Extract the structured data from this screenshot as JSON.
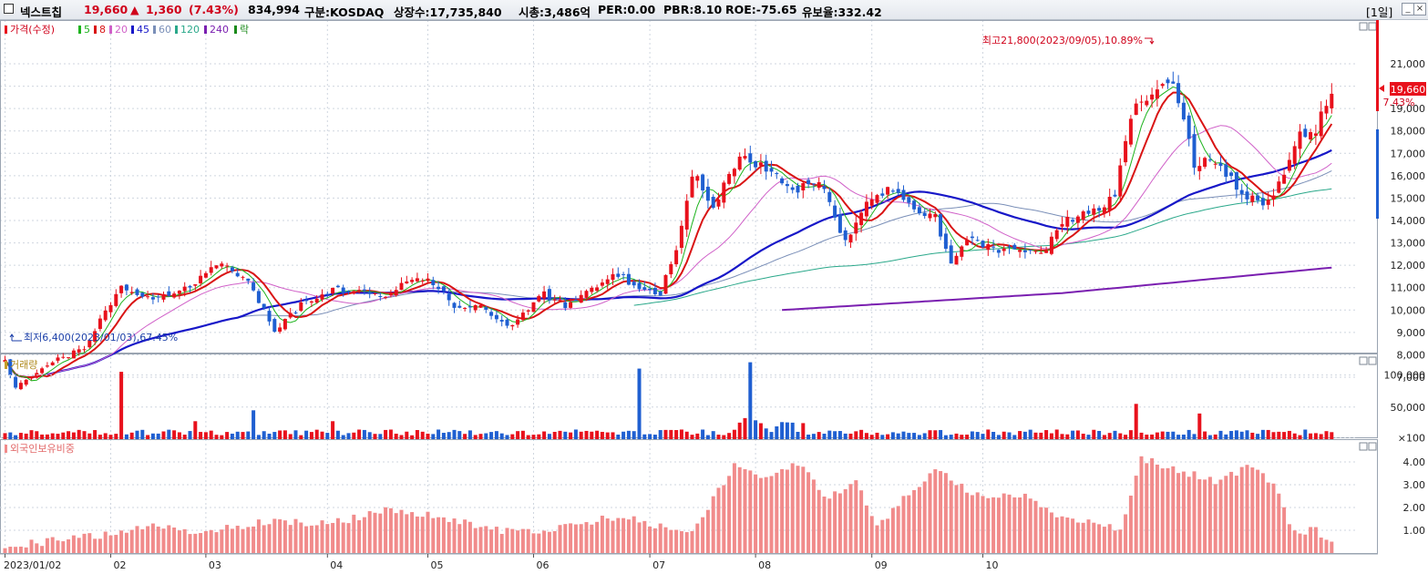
{
  "header": {
    "name": "넥스트칩",
    "price": "19,660",
    "change_arrow": "▲",
    "change": "1,360",
    "change_pct": "(7.43%)",
    "volume": "834,994",
    "market": "구분:KOSDAQ",
    "listed": "상장수:17,735,840",
    "mcap": "시총:3,486억",
    "per": "PER:0.00",
    "pbr": "PBR:8.10",
    "roe": "ROE:-75.65",
    "reserve": "유보율:332.42",
    "period": "[1일]",
    "min_glyph": "_",
    "max_glyph": "□",
    "close_glyph": "×"
  },
  "colors": {
    "up": "#e8111c",
    "down": "#1f5fd1",
    "ma5": "#1db31d",
    "ma8": "#d91414",
    "ma20": "#d060c8",
    "ma45": "#1717c8",
    "ma60": "#7a8fb8",
    "ma120": "#2aa88a",
    "ma240": "#7a1fb0",
    "foreign": "#f18b8b",
    "grid": "#cfd6df"
  },
  "chart_data": [
    {
      "type": "candlestick",
      "title": "가격(수정)",
      "legend": [
        "5",
        "8",
        "20",
        "45",
        "60",
        "120",
        "240",
        "락"
      ],
      "ylim": [
        6000,
        22500
      ],
      "yticks": [
        "7,000",
        "8,000",
        "9,000",
        "10,000",
        "11,000",
        "12,000",
        "13,000",
        "14,000",
        "15,000",
        "16,000",
        "17,000",
        "18,000",
        "19,000",
        "20,000",
        "21,000"
      ],
      "high_annotation": "최고21,800(2023/09/05),10.89%",
      "low_annotation": "최저6,400(2023/01/03),67.45%",
      "current_label": "19,660",
      "current_pct": "7.43%",
      "xlabels": [
        "2023/01/02",
        "02",
        "03",
        "04",
        "05",
        "06",
        "07",
        "08",
        "09",
        "10"
      ],
      "anchors": [
        [
          0,
          7700
        ],
        [
          2,
          6500
        ],
        [
          8,
          7600
        ],
        [
          15,
          8300
        ],
        [
          19,
          9900
        ],
        [
          22,
          11000
        ],
        [
          27,
          10500
        ],
        [
          33,
          10800
        ],
        [
          36,
          11300
        ],
        [
          41,
          12200
        ],
        [
          46,
          11200
        ],
        [
          51,
          9100
        ],
        [
          56,
          10200
        ],
        [
          61,
          10800
        ],
        [
          67,
          11000
        ],
        [
          72,
          10600
        ],
        [
          76,
          11400
        ],
        [
          81,
          11200
        ],
        [
          86,
          10000
        ],
        [
          90,
          10200
        ],
        [
          93,
          9700
        ],
        [
          96,
          9300
        ],
        [
          99,
          10100
        ],
        [
          102,
          10700
        ],
        [
          106,
          10200
        ],
        [
          111,
          11000
        ],
        [
          116,
          11600
        ],
        [
          120,
          11000
        ],
        [
          124,
          10800
        ],
        [
          127,
          12800
        ],
        [
          130,
          16200
        ],
        [
          134,
          14500
        ],
        [
          139,
          17000
        ],
        [
          144,
          16200
        ],
        [
          149,
          15300
        ],
        [
          154,
          15800
        ],
        [
          159,
          13000
        ],
        [
          163,
          14900
        ],
        [
          168,
          15500
        ],
        [
          172,
          14600
        ],
        [
          176,
          14100
        ],
        [
          179,
          12200
        ],
        [
          183,
          13200
        ],
        [
          187,
          12700
        ],
        [
          192,
          12800
        ],
        [
          196,
          12400
        ],
        [
          200,
          13900
        ],
        [
          205,
          14300
        ],
        [
          210,
          15000
        ],
        [
          213,
          18700
        ],
        [
          216,
          19600
        ],
        [
          221,
          20300
        ],
        [
          225,
          16500
        ],
        [
          229,
          16600
        ],
        [
          234,
          15200
        ],
        [
          238,
          14600
        ],
        [
          241,
          15600
        ],
        [
          245,
          17900
        ],
        [
          248,
          18100
        ],
        [
          251,
          19660
        ]
      ],
      "series": [
        {
          "name": "5"
        },
        {
          "name": "8"
        },
        {
          "name": "20"
        },
        {
          "name": "45"
        },
        {
          "name": "60"
        },
        {
          "name": "120"
        },
        {
          "name": "240"
        }
      ]
    },
    {
      "type": "bar",
      "title": "거래량",
      "yticks": [
        "×100",
        "50,000",
        "100,000"
      ],
      "ylim": [
        0,
        125000
      ]
    },
    {
      "type": "bar",
      "title": "외국인보유비중",
      "yticks": [
        "1.00",
        "2.00",
        "3.00",
        "4.00"
      ],
      "ylim": [
        0,
        4.6
      ]
    }
  ]
}
